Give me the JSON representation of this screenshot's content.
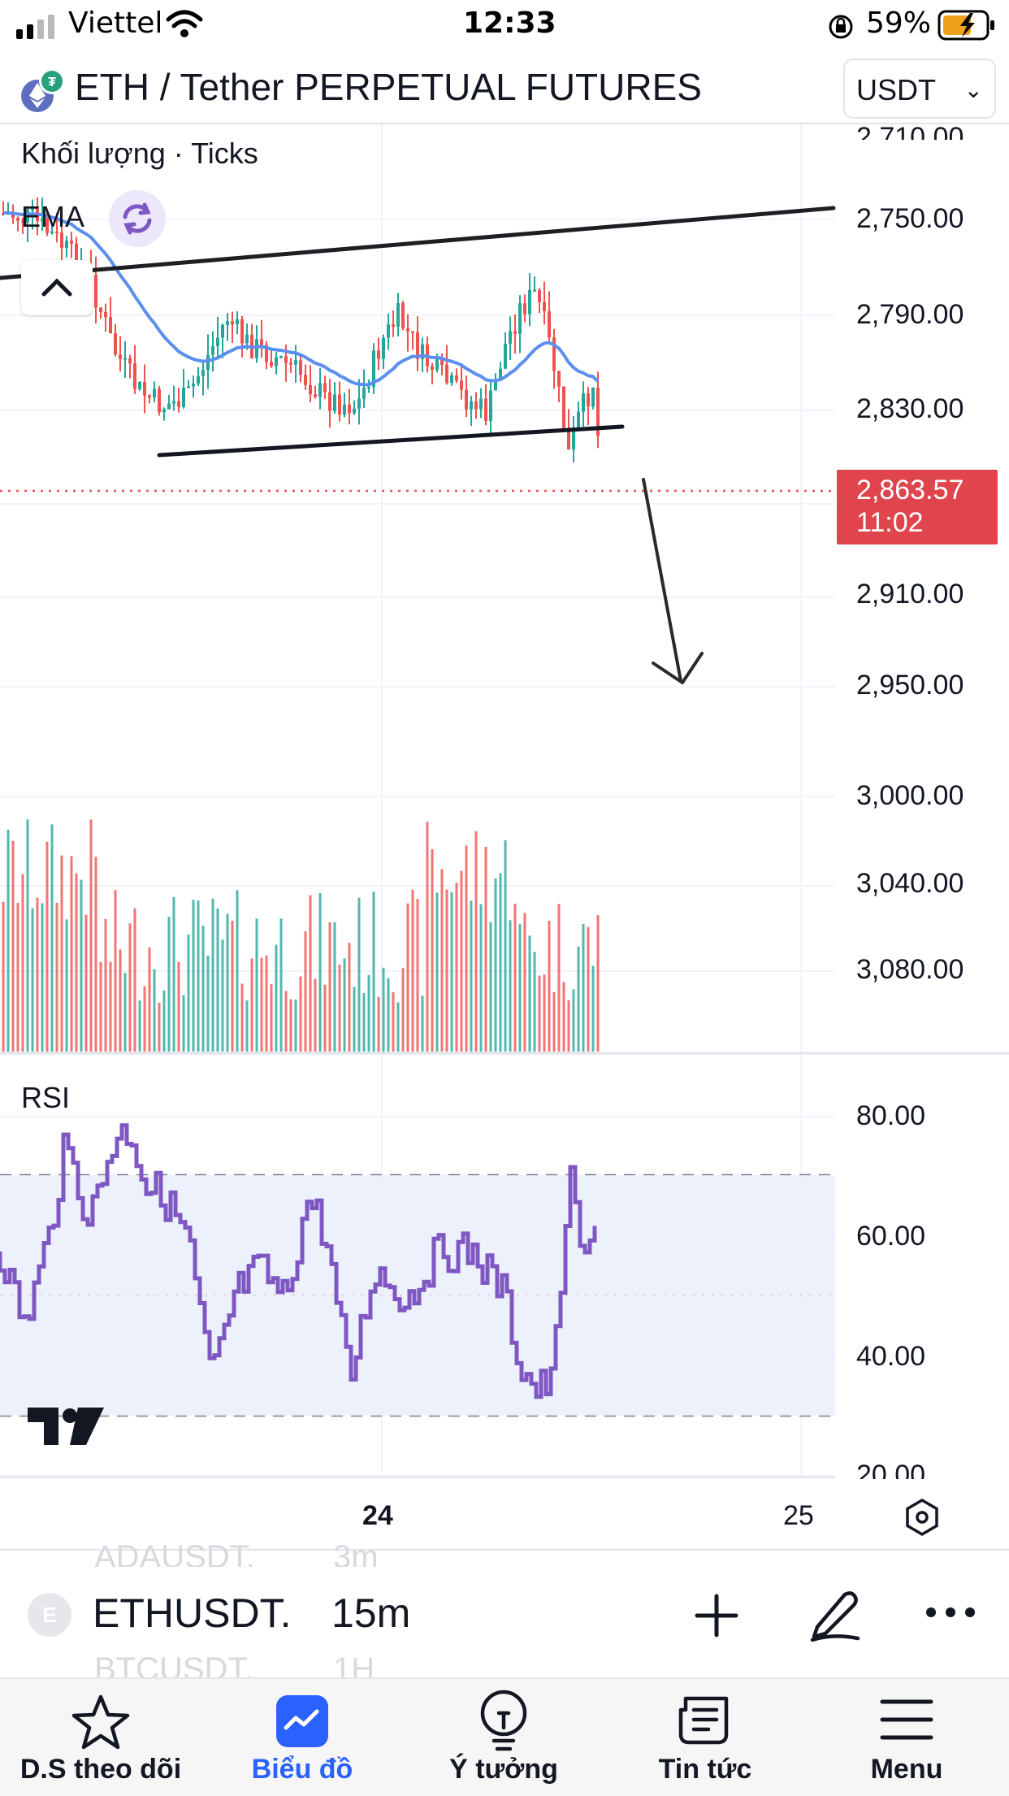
{
  "status_bar": {
    "carrier": "Viettel",
    "time": "12:33",
    "battery_percent": "59%"
  },
  "header": {
    "symbol_title": "ETH / Tether PERPETUAL FUTURES",
    "currency": "USDT"
  },
  "legend": {
    "volume_label": "Khối lượng · Ticks",
    "ema_label": "EMA",
    "rsi_label": "RSI"
  },
  "price_axis": {
    "labels": [
      "2,710.00",
      "2,750.00",
      "2,790.00",
      "2,830.00",
      "2,910.00",
      "2,950.00",
      "3,000.00",
      "3,040.00",
      "3,080.00"
    ],
    "current_price": "2,863.57",
    "countdown": "11:02"
  },
  "rsi_axis": {
    "labels": [
      "80.00",
      "60.00",
      "40.00",
      "20.00"
    ]
  },
  "time_axis": {
    "labels": [
      "24",
      "25"
    ]
  },
  "symbol_bar": {
    "symbol": "ETHUSDT.",
    "interval": "15m",
    "symbol_avatar": "E",
    "ghost_above_symbol": "ADAUSDT.",
    "ghost_above_interval": "3m",
    "ghost_below_symbol": "BTCUSDT.",
    "ghost_below_interval": "1H"
  },
  "tabs": [
    {
      "label": "D.S theo dõi",
      "icon": "star-icon"
    },
    {
      "label": "Biểu đồ",
      "icon": "chart-icon",
      "active": true
    },
    {
      "label": "Ý tưởng",
      "icon": "lightbulb-icon"
    },
    {
      "label": "Tin tức",
      "icon": "news-icon"
    },
    {
      "label": "Menu",
      "icon": "menu-icon"
    }
  ],
  "colors": {
    "up": "#26a69a",
    "down": "#ef5350",
    "ema": "#5b8ff0",
    "rsi": "#7e57c2",
    "price_tag": "#e0454d",
    "active_tab": "#2962ff"
  }
}
